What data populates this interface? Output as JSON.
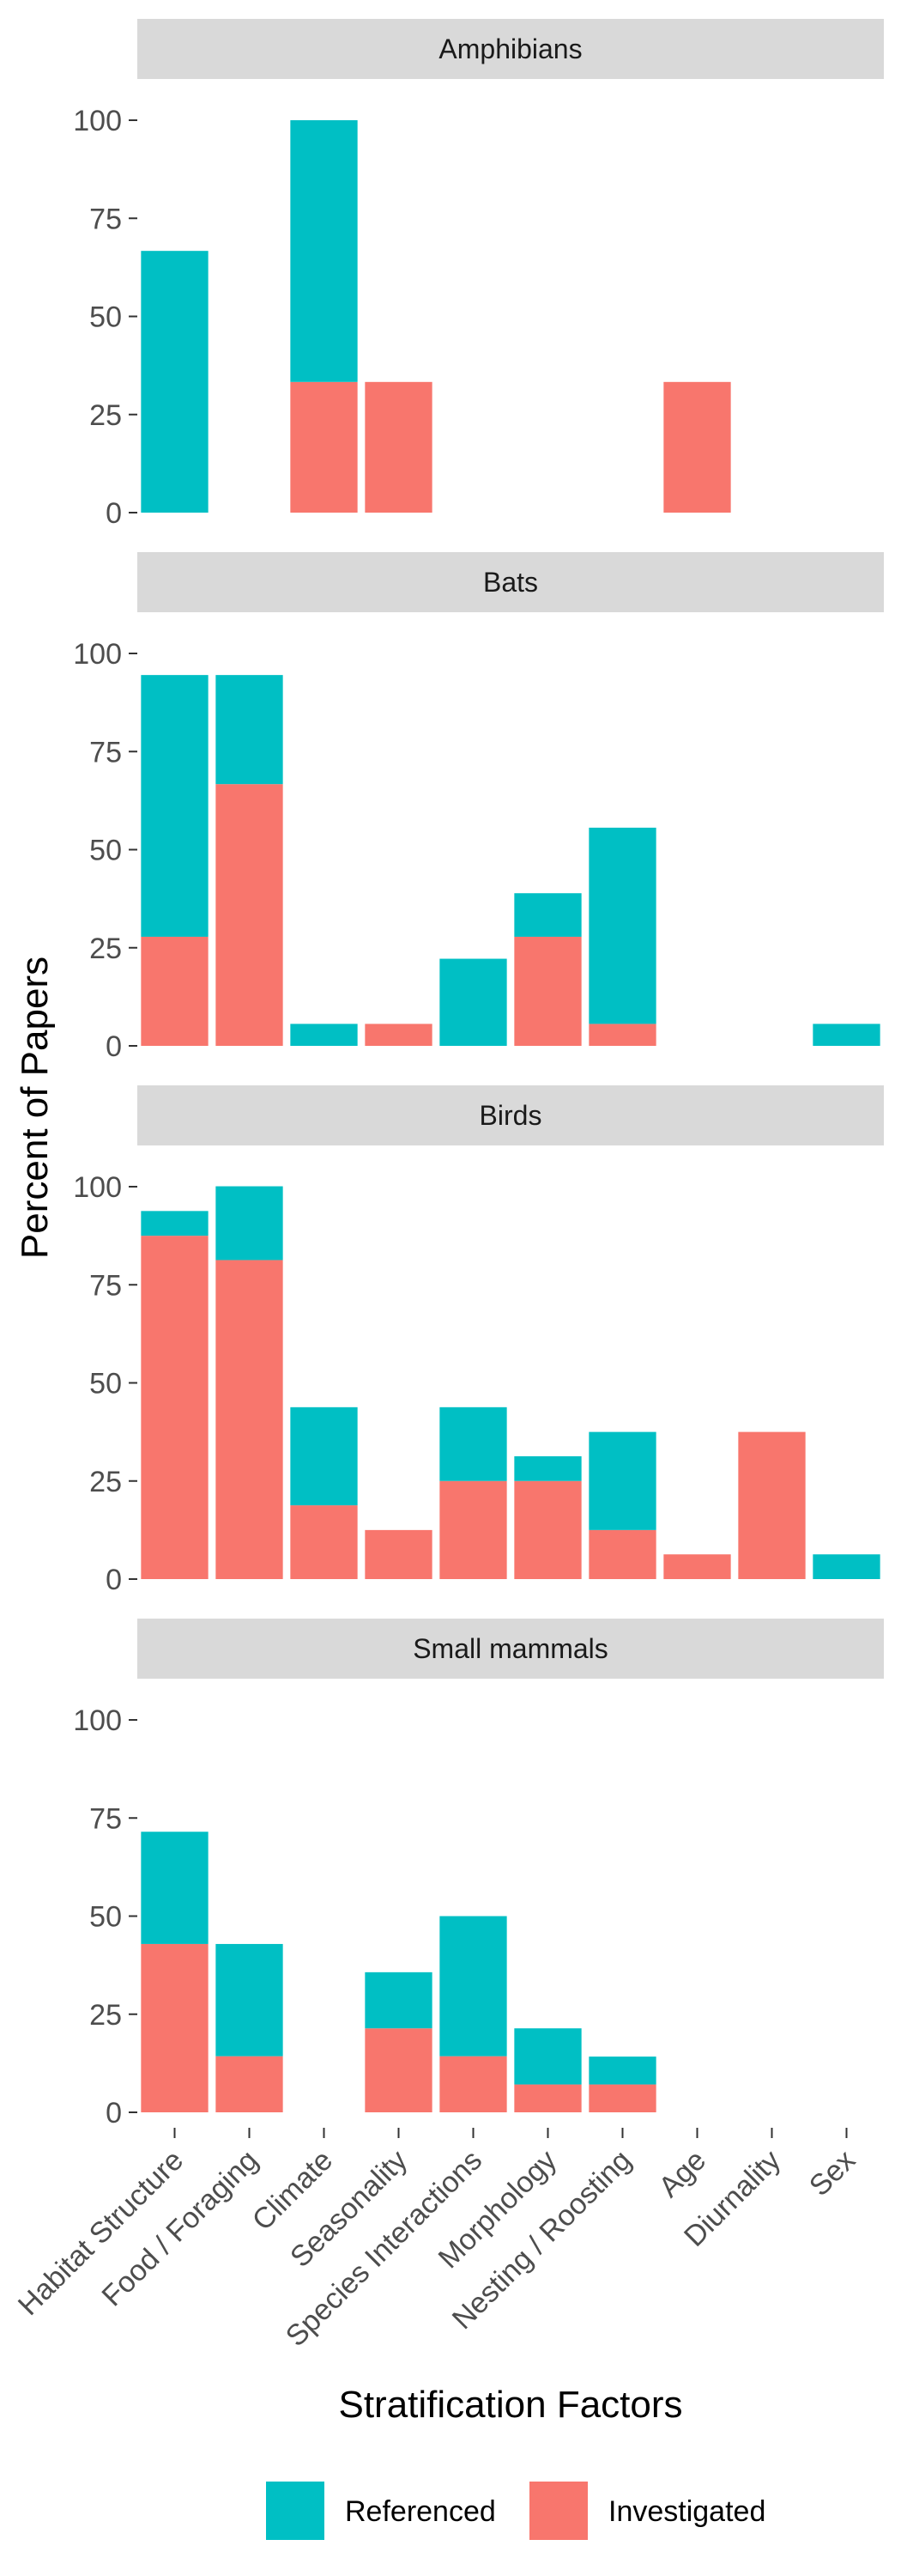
{
  "chart_data": {
    "type": "bar",
    "stacked": true,
    "faceted": true,
    "xlabel": "Stratification Factors",
    "ylabel": "Percent of Papers",
    "ylim": [
      0,
      100
    ],
    "yticks": [
      0,
      25,
      50,
      75,
      100
    ],
    "grid": false,
    "legend_position": "bottom",
    "categories": [
      "Habitat Structure",
      "Food / Foraging",
      "Climate",
      "Seasonality",
      "Species Interactions",
      "Morphology",
      "Nesting / Roosting",
      "Age",
      "Diurnality",
      "Sex"
    ],
    "series": [
      {
        "name": "Referenced",
        "color": "#00BFC4"
      },
      {
        "name": "Investigated",
        "color": "#F8766D"
      }
    ],
    "panels": [
      {
        "title": "Amphibians",
        "investigated": [
          0,
          0,
          33.3,
          33.3,
          0,
          0,
          0,
          33.3,
          0,
          0
        ],
        "referenced": [
          66.7,
          0,
          66.7,
          0,
          0,
          0,
          0,
          0,
          0,
          0
        ]
      },
      {
        "title": "Bats",
        "investigated": [
          27.8,
          66.7,
          0,
          5.6,
          0,
          27.8,
          5.6,
          0,
          0,
          0
        ],
        "referenced": [
          66.7,
          27.8,
          5.6,
          0,
          22.2,
          11.1,
          50,
          0,
          0,
          5.6
        ]
      },
      {
        "title": "Birds",
        "investigated": [
          87.5,
          81.3,
          18.8,
          12.5,
          25,
          25,
          12.5,
          6.3,
          37.5,
          0
        ],
        "referenced": [
          6.3,
          18.8,
          25,
          0,
          18.8,
          6.3,
          25,
          0,
          0,
          6.3
        ]
      },
      {
        "title": "Small mammals",
        "investigated": [
          42.9,
          14.3,
          0,
          21.4,
          14.3,
          7.1,
          7.1,
          0,
          0,
          0
        ],
        "referenced": [
          28.6,
          28.6,
          0,
          14.3,
          35.7,
          14.3,
          7.1,
          0,
          0,
          0
        ]
      }
    ]
  }
}
